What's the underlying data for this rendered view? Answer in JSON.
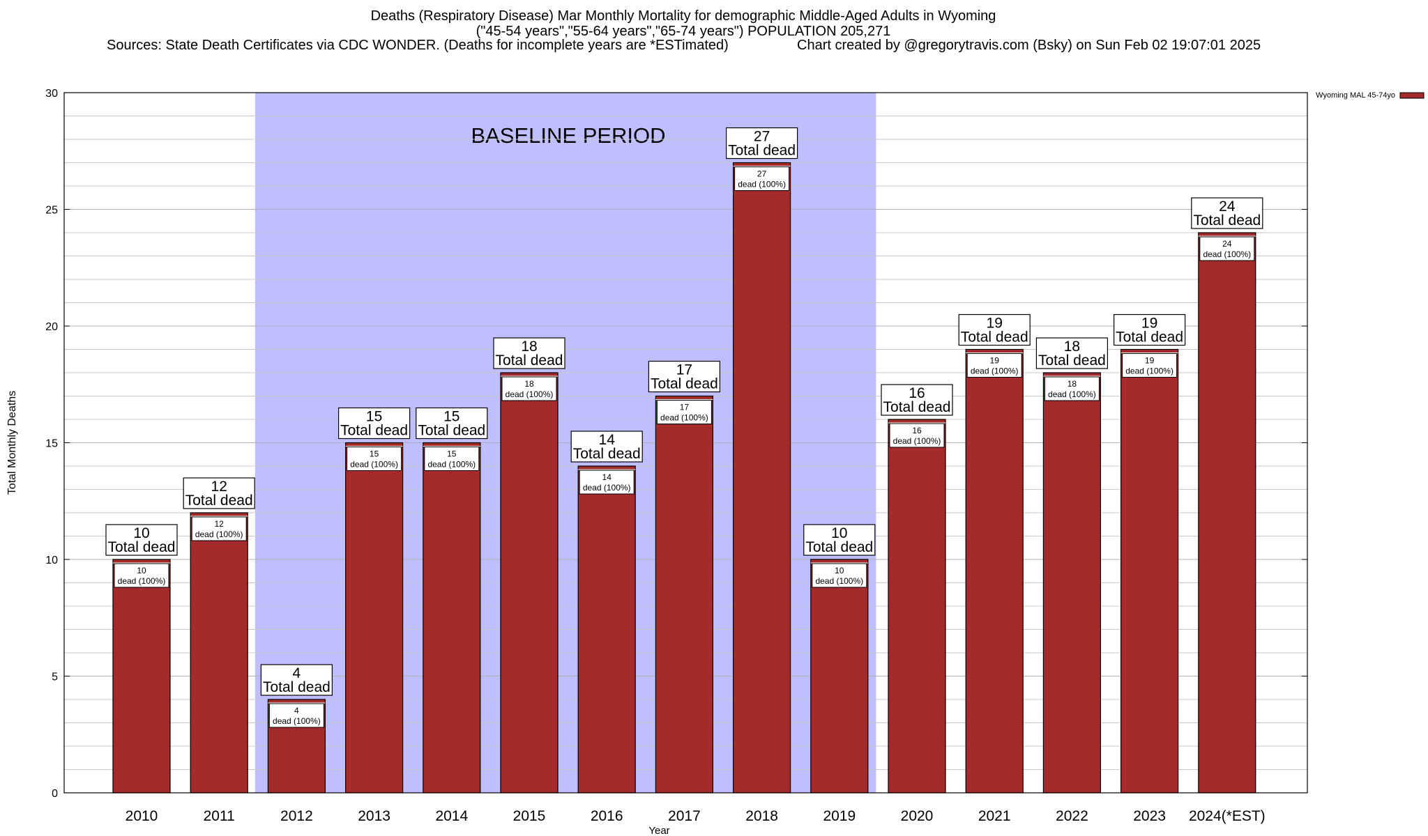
{
  "chart_data": {
    "type": "bar",
    "title": "Deaths (Respiratory Disease) Mar Monthly Mortality for demographic Middle-Aged Adults in Wyoming",
    "subtitle": "(\"45-54 years\",\"55-64 years\",\"65-74 years\") POPULATION 205,271",
    "source": "Sources: State Death Certificates via CDC WONDER. (Deaths for incomplete years are *ESTimated)",
    "credit": "Chart created by @gregorytravis.com (Bsky) on Sun Feb 02 19:07:01 2025",
    "xlabel": "Year",
    "ylabel": "Total Monthly Deaths",
    "ylim": [
      0,
      30
    ],
    "yticks": [
      0,
      5,
      10,
      15,
      20,
      25,
      30
    ],
    "grid": true,
    "legend_placement": "top-right",
    "categories": [
      "2010",
      "2011",
      "2012",
      "2013",
      "2014",
      "2015",
      "2016",
      "2017",
      "2018",
      "2019",
      "2020",
      "2021",
      "2022",
      "2023",
      "2024(*EST)"
    ],
    "series": [
      {
        "name": "Wyoming MAL 45-74yo",
        "color": "#a52a2a",
        "values": [
          10,
          12,
          4,
          15,
          15,
          18,
          14,
          17,
          27,
          10,
          16,
          19,
          18,
          19,
          24
        ]
      }
    ],
    "total_label_suffix": "Total dead",
    "inner_label_suffix": "dead (100%)",
    "baseline": {
      "label": "BASELINE PERIOD",
      "from": "2012",
      "to": "2019",
      "color": "#bfbfff"
    }
  }
}
